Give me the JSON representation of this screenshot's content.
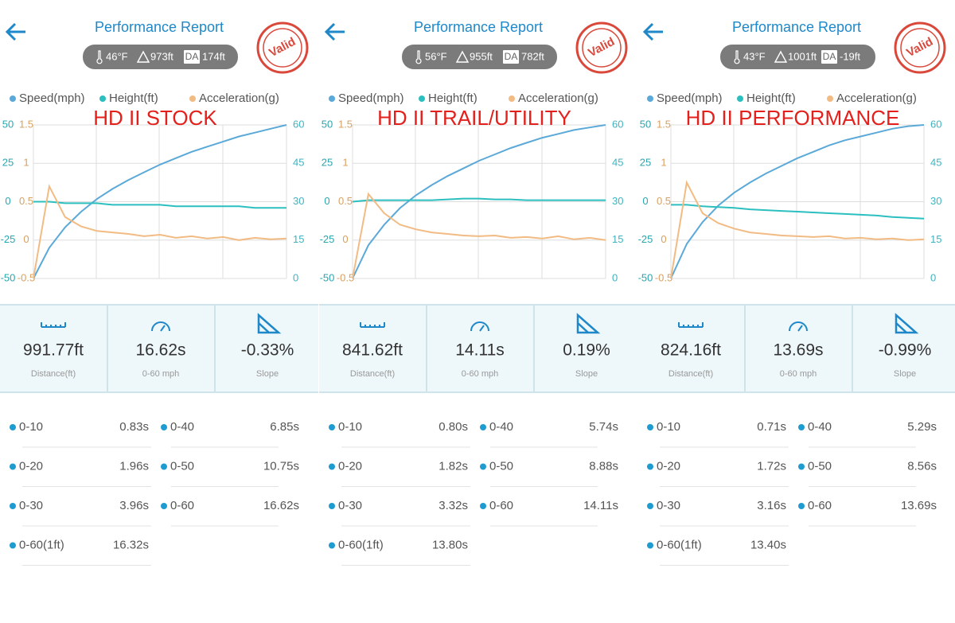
{
  "panels": [
    {
      "header": {
        "title": "Performance Report",
        "temperature": "46°F",
        "elevation": "973ft",
        "da_label": "DA",
        "da_value": "174ft",
        "stamp": "Valid"
      },
      "overlay_label": "HD II STOCK",
      "chart_data": {
        "type": "line",
        "categories": [
          null,
          null,
          null,
          null,
          null,
          null,
          null,
          null,
          null,
          null,
          null,
          null,
          null,
          null,
          null,
          null,
          null
        ],
        "series": [
          {
            "name": "Speed(mph)",
            "color": "#5aa9d8",
            "axis": "y2",
            "values": [
              0,
              12,
              20,
              26,
              31,
              35,
              38.5,
              41.5,
              44.5,
              47,
              49.5,
              51.5,
              53.5,
              55.5,
              57,
              58.5,
              60
            ]
          },
          {
            "name": "Height(ft)",
            "color": "#2cbfbf",
            "axis": "y",
            "values": [
              0,
              0,
              -1,
              -1,
              -1,
              -2,
              -2,
              -2,
              -2,
              -3,
              -3,
              -3,
              -3,
              -3,
              -4,
              -4,
              -4
            ]
          },
          {
            "name": "Acceleration(g)",
            "color": "#f2bb84",
            "axis": "y3",
            "values": [
              -0.5,
              0.7,
              0.3,
              0.18,
              0.12,
              0.1,
              0.08,
              0.05,
              0.07,
              0.03,
              0.05,
              0.02,
              0.04,
              0.0,
              0.03,
              0.01,
              0.02
            ]
          }
        ],
        "ylim": [
          -50,
          50
        ],
        "yticks": [
          -50,
          -25,
          0,
          25,
          50
        ],
        "y2lim": [
          0,
          60
        ],
        "y2ticks": [
          0,
          15,
          30,
          45,
          60
        ],
        "y3lim": [
          -0.5,
          1.5
        ],
        "y3ticks": [
          -0.5,
          0,
          0.5,
          1,
          1.5
        ],
        "grid": true
      },
      "stats": [
        {
          "value": "991.77ft",
          "label": "Distance(ft)"
        },
        {
          "value": "16.62s",
          "label": "0-60 mph"
        },
        {
          "value": "-0.33%",
          "label": "Slope"
        }
      ],
      "splits": [
        {
          "label": "0-10",
          "value": "0.83s"
        },
        {
          "label": "0-40",
          "value": "6.85s"
        },
        {
          "label": "0-20",
          "value": "1.96s"
        },
        {
          "label": "0-50",
          "value": "10.75s"
        },
        {
          "label": "0-30",
          "value": "3.96s"
        },
        {
          "label": "0-60",
          "value": "16.62s"
        },
        {
          "label": "0-60(1ft)",
          "value": "16.32s"
        }
      ]
    },
    {
      "header": {
        "title": "Performance Report",
        "temperature": "56°F",
        "elevation": "955ft",
        "da_label": "DA",
        "da_value": "782ft",
        "stamp": "Valid"
      },
      "overlay_label": "HD II TRAIL/UTILITY",
      "chart_data": {
        "type": "line",
        "categories": [
          null,
          null,
          null,
          null,
          null,
          null,
          null,
          null,
          null,
          null,
          null,
          null,
          null,
          null,
          null,
          null,
          null
        ],
        "series": [
          {
            "name": "Speed(mph)",
            "color": "#5aa9d8",
            "axis": "y2",
            "values": [
              0,
              13,
              21,
              27.5,
              32.5,
              36.5,
              40,
              43,
              46,
              48.5,
              51,
              53,
              55,
              56.5,
              58,
              59,
              60
            ]
          },
          {
            "name": "Height(ft)",
            "color": "#2cbfbf",
            "axis": "y",
            "values": [
              0,
              1,
              1,
              1,
              1,
              1,
              1.5,
              2,
              2,
              1.5,
              1.5,
              1,
              1,
              1,
              1,
              1,
              1
            ]
          },
          {
            "name": "Acceleration(g)",
            "color": "#f2bb84",
            "axis": "y3",
            "values": [
              -0.5,
              0.6,
              0.35,
              0.2,
              0.14,
              0.1,
              0.08,
              0.06,
              0.05,
              0.06,
              0.03,
              0.04,
              0.02,
              0.05,
              0.01,
              0.03,
              0.0
            ]
          }
        ],
        "ylim": [
          -50,
          50
        ],
        "yticks": [
          -50,
          -25,
          0,
          25,
          50
        ],
        "y2lim": [
          0,
          60
        ],
        "y2ticks": [
          0,
          15,
          30,
          45,
          60
        ],
        "y3lim": [
          -0.5,
          1.5
        ],
        "y3ticks": [
          -0.5,
          0,
          0.5,
          1,
          1.5
        ],
        "grid": true
      },
      "stats": [
        {
          "value": "841.62ft",
          "label": "Distance(ft)"
        },
        {
          "value": "14.11s",
          "label": "0-60 mph"
        },
        {
          "value": "0.19%",
          "label": "Slope"
        }
      ],
      "splits": [
        {
          "label": "0-10",
          "value": "0.80s"
        },
        {
          "label": "0-40",
          "value": "5.74s"
        },
        {
          "label": "0-20",
          "value": "1.82s"
        },
        {
          "label": "0-50",
          "value": "8.88s"
        },
        {
          "label": "0-30",
          "value": "3.32s"
        },
        {
          "label": "0-60",
          "value": "14.11s"
        },
        {
          "label": "0-60(1ft)",
          "value": "13.80s"
        }
      ]
    },
    {
      "header": {
        "title": "Performance Report",
        "temperature": "43°F",
        "elevation": "1001ft",
        "da_label": "DA",
        "da_value": "-19ft",
        "stamp": "Valid"
      },
      "overlay_label": "HD II PERFORMANCE",
      "chart_data": {
        "type": "line",
        "categories": [
          null,
          null,
          null,
          null,
          null,
          null,
          null,
          null,
          null,
          null,
          null,
          null,
          null,
          null,
          null,
          null,
          null
        ],
        "series": [
          {
            "name": "Speed(mph)",
            "color": "#5aa9d8",
            "axis": "y2",
            "values": [
              0,
              13.5,
              22,
              28.5,
              33.5,
              37.5,
              41,
              44,
              47,
              49.5,
              52,
              54,
              55.5,
              57,
              58.5,
              59.5,
              60
            ]
          },
          {
            "name": "Height(ft)",
            "color": "#2cbfbf",
            "axis": "y",
            "values": [
              -2,
              -2,
              -3,
              -3.5,
              -4,
              -5,
              -5.5,
              -6,
              -6.5,
              -7,
              -7.5,
              -8,
              -8.5,
              -9,
              -10,
              -10.5,
              -11
            ]
          },
          {
            "name": "Acceleration(g)",
            "color": "#f2bb84",
            "axis": "y3",
            "values": [
              -0.5,
              0.75,
              0.35,
              0.22,
              0.15,
              0.1,
              0.08,
              0.06,
              0.05,
              0.04,
              0.05,
              0.02,
              0.03,
              0.01,
              0.02,
              0.0,
              0.01
            ]
          }
        ],
        "ylim": [
          -50,
          50
        ],
        "yticks": [
          -50,
          -25,
          0,
          25,
          50
        ],
        "y2lim": [
          0,
          60
        ],
        "y2ticks": [
          0,
          15,
          30,
          45,
          60
        ],
        "y3lim": [
          -0.5,
          1.5
        ],
        "y3ticks": [
          -0.5,
          0,
          0.5,
          1,
          1.5
        ],
        "grid": true
      },
      "stats": [
        {
          "value": "824.16ft",
          "label": "Distance(ft)"
        },
        {
          "value": "13.69s",
          "label": "0-60 mph"
        },
        {
          "value": "-0.99%",
          "label": "Slope"
        }
      ],
      "splits": [
        {
          "label": "0-10",
          "value": "0.71s"
        },
        {
          "label": "0-40",
          "value": "5.29s"
        },
        {
          "label": "0-20",
          "value": "1.72s"
        },
        {
          "label": "0-50",
          "value": "8.56s"
        },
        {
          "label": "0-30",
          "value": "3.16s"
        },
        {
          "label": "0-60",
          "value": "13.69s"
        },
        {
          "label": "0-60(1ft)",
          "value": "13.40s"
        }
      ]
    }
  ]
}
